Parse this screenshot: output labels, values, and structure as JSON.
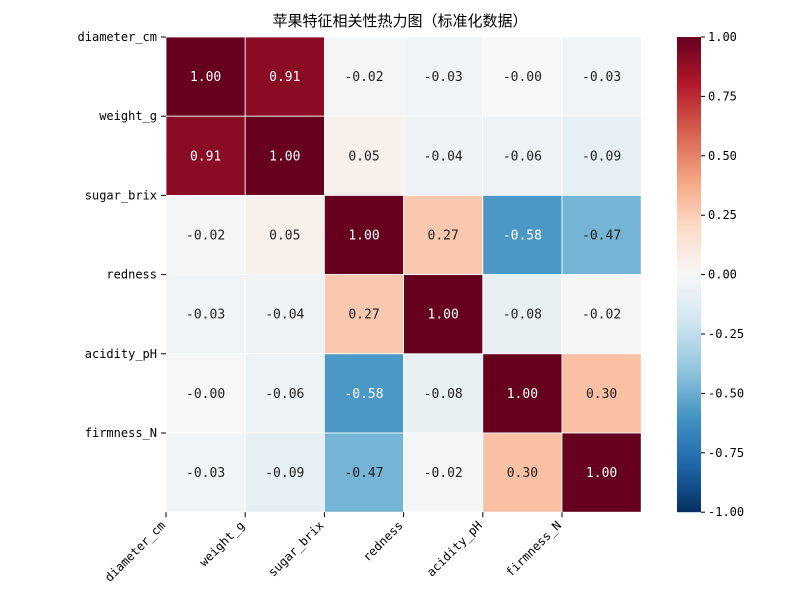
{
  "chart_data": {
    "type": "heatmap",
    "title": "苹果特征相关性热力图（标准化数据）",
    "xlabel": "",
    "ylabel": "",
    "rows": [
      "diameter_cm",
      "weight_g",
      "sugar_brix",
      "redness",
      "acidity_pH",
      "firmness_N"
    ],
    "columns": [
      "diameter_cm",
      "weight_g",
      "sugar_brix",
      "redness",
      "acidity_pH",
      "firmness_N"
    ],
    "values": [
      [
        1.0,
        0.91,
        -0.02,
        -0.03,
        -0.0,
        -0.03
      ],
      [
        0.91,
        1.0,
        0.05,
        -0.04,
        -0.06,
        -0.09
      ],
      [
        -0.02,
        0.05,
        1.0,
        0.27,
        -0.58,
        -0.47
      ],
      [
        -0.03,
        -0.04,
        0.27,
        1.0,
        -0.08,
        -0.02
      ],
      [
        -0.0,
        -0.06,
        -0.58,
        -0.08,
        1.0,
        0.3
      ],
      [
        -0.03,
        -0.09,
        -0.47,
        -0.02,
        0.3,
        1.0
      ]
    ],
    "value_labels": [
      [
        "1.00",
        "0.91",
        "-0.02",
        "-0.03",
        "-0.00",
        "-0.03"
      ],
      [
        "0.91",
        "1.00",
        "0.05",
        "-0.04",
        "-0.06",
        "-0.09"
      ],
      [
        "-0.02",
        "0.05",
        "1.00",
        "0.27",
        "-0.58",
        "-0.47"
      ],
      [
        "-0.03",
        "-0.04",
        "0.27",
        "1.00",
        "-0.08",
        "-0.02"
      ],
      [
        "-0.00",
        "-0.06",
        "-0.58",
        "-0.08",
        "1.00",
        "0.30"
      ],
      [
        "-0.03",
        "-0.09",
        "-0.47",
        "-0.02",
        "0.30",
        "1.00"
      ]
    ],
    "colormap": "RdBu_r",
    "vmin": -1.0,
    "vmax": 1.0,
    "colorbar_ticks": [
      "1.00",
      "0.75",
      "0.50",
      "0.25",
      "0.00",
      "-0.25",
      "-0.50",
      "-0.75",
      "-1.00"
    ],
    "colorbar_tick_values": [
      1.0,
      0.75,
      0.5,
      0.25,
      0.0,
      -0.25,
      -0.5,
      -0.75,
      -1.0
    ],
    "grid": false,
    "legend": "colorbar-right",
    "colors": {
      "cell_border": "#ffffff",
      "annotation_text": "#ffffff"
    }
  }
}
